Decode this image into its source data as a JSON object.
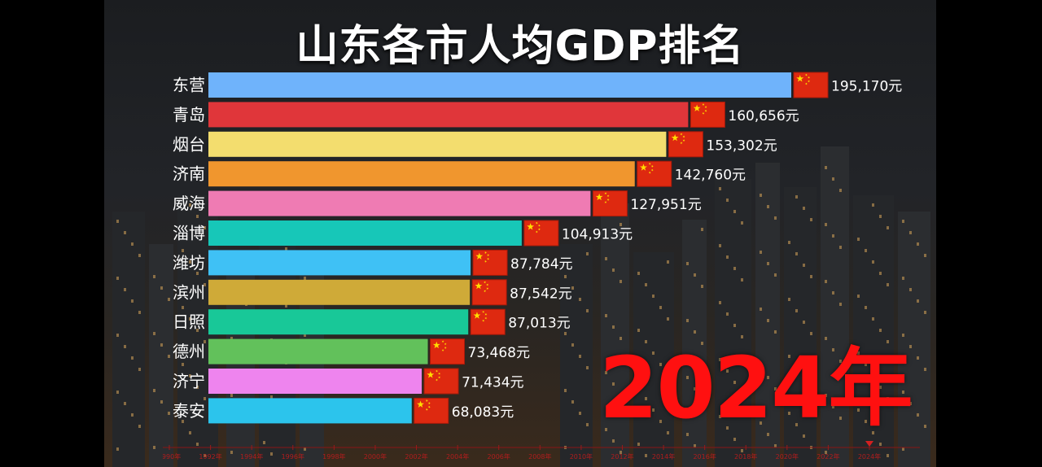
{
  "title": "山东各市人均GDP排名",
  "year_label": "2024年",
  "chart_data": {
    "type": "bar",
    "orientation": "horizontal",
    "value_suffix": "元",
    "categories": [
      "东营",
      "青岛",
      "烟台",
      "济南",
      "威海",
      "淄博",
      "潍坊",
      "滨州",
      "日照",
      "德州",
      "济宁",
      "泰安"
    ],
    "values": [
      195170,
      160656,
      153302,
      142760,
      127951,
      104913,
      87784,
      87542,
      87013,
      73468,
      71434,
      68083
    ],
    "value_labels": [
      "195,170元",
      "160,656元",
      "153,302元",
      "142,760元",
      "127,951元",
      "104,913元",
      "87,784元",
      "87,542元",
      "87,013元",
      "73,468元",
      "71,434元",
      "68,083元"
    ],
    "colors": [
      "#6fb3fb",
      "#e0363a",
      "#f3dd6e",
      "#f0962e",
      "#ef7bb3",
      "#17c7b8",
      "#3fc1f5",
      "#cfaa38",
      "#18c898",
      "#62c15b",
      "#ee84ee",
      "#2cc4ec"
    ],
    "timeline": {
      "ticks": [
        "1990年",
        "1992年",
        "1994年",
        "1996年",
        "1998年",
        "2000年",
        "2002年",
        "2004年",
        "2006年",
        "2008年",
        "2010年",
        "2012年",
        "2014年",
        "2016年",
        "2018年",
        "2020年",
        "2022年",
        "2024年"
      ],
      "current": "2024年"
    }
  }
}
